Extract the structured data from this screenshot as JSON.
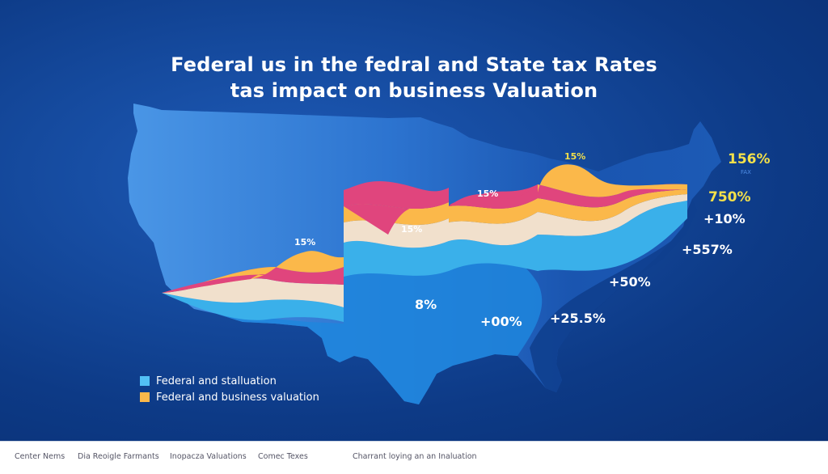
{
  "colors": {
    "bg_dark": "#0a2f73",
    "map_light": "#3f8de0",
    "map_mid": "#2a78d6",
    "map_dark_east": "#0f3f8e",
    "band_lightblue": "#3ab0ea",
    "band_cream": "#f1e0cc",
    "band_orange": "#fbb84a",
    "band_pink": "#e0457d",
    "label_white": "#ffffff",
    "label_yellow": "#f3e04a"
  },
  "chart_data": {
    "type": "area",
    "subtype": "stacked-stream-over-map",
    "title": "Federal us in the fedral and State tax Rates",
    "subtitle": "tas impact on business Valuation",
    "xlabel": "",
    "ylabel": "",
    "grid": false,
    "legend_position": "bottom-left",
    "legend": [
      {
        "label": "Federal and stalluation",
        "color": "#3ab0ea"
      },
      {
        "label": "Federal and business valuation",
        "color": "#fbb84a"
      }
    ],
    "series": [
      {
        "name": "light-blue band",
        "color": "#3ab0ea"
      },
      {
        "name": "cream band",
        "color": "#f1e0cc"
      },
      {
        "name": "orange band",
        "color": "#fbb84a"
      },
      {
        "name": "pink band",
        "color": "#e0457d"
      }
    ],
    "annotations": [
      {
        "text": "15%",
        "region": "southwest",
        "style": "small-white"
      },
      {
        "text": "15%",
        "region": "south-central",
        "style": "small-white"
      },
      {
        "text": "15%",
        "region": "central",
        "style": "small-white"
      },
      {
        "text": "15%",
        "region": "great-lakes",
        "style": "small-yellow"
      },
      {
        "text": "8%",
        "region": "texas",
        "style": "white"
      },
      {
        "text": "+00%",
        "region": "gulf",
        "style": "white"
      },
      {
        "text": "+25.5%",
        "region": "southeast",
        "style": "white"
      },
      {
        "text": "+50%",
        "region": "carolinas",
        "style": "white"
      },
      {
        "text": "+557%",
        "region": "mid-atlantic",
        "style": "white"
      },
      {
        "text": "+10%",
        "region": "northeast",
        "style": "white"
      },
      {
        "text": "750%",
        "region": "northeast",
        "style": "yellow"
      },
      {
        "text": "156%",
        "region": "new-england",
        "style": "yellow"
      },
      {
        "text": "FAX",
        "region": "new-england",
        "style": "tiny"
      }
    ]
  },
  "footer": {
    "items": [
      "Center Nems",
      "Dia Reoigle Farmants",
      "Inopacza Valuations",
      "Comec Texes",
      "Charrant loying an an Inaluation"
    ]
  }
}
